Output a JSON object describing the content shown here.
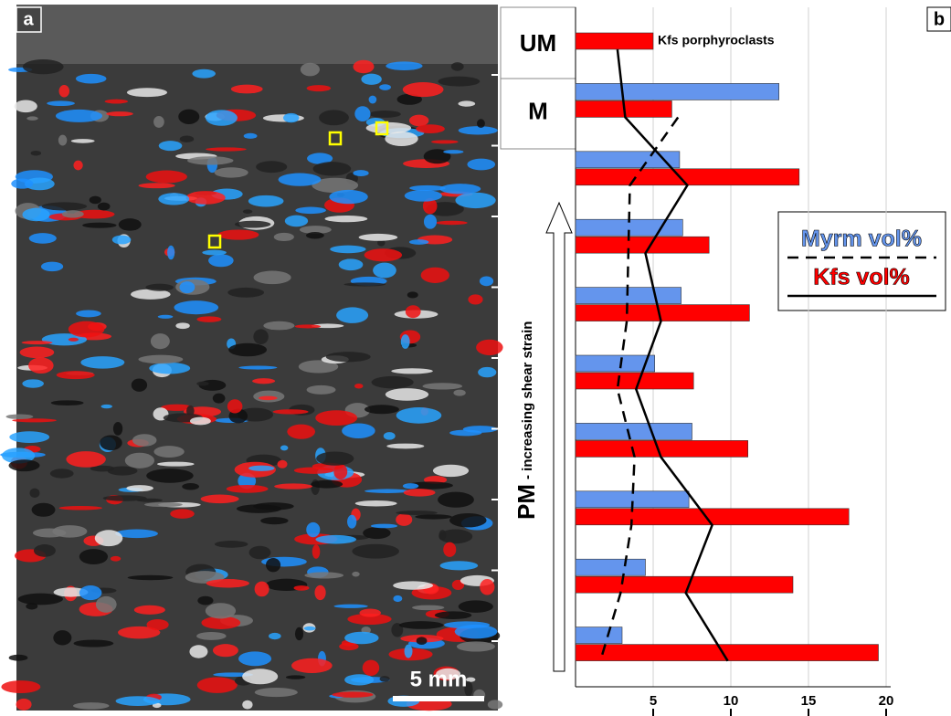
{
  "panel_a": {
    "label": "a",
    "scale_bar": "5 mm"
  },
  "chart_data": {
    "type": "bar",
    "orientation": "horizontal",
    "panel_label": "b",
    "categories": [
      "UM",
      "M",
      null,
      null,
      null,
      null,
      null,
      null,
      null,
      null
    ],
    "zone_label": "PM",
    "zone_sublabel": "- increasing shear strain",
    "annotation": "Kfs porphyroclasts",
    "series": [
      {
        "name": "Myrm vol%",
        "color": "#6495ed",
        "values": [
          null,
          13.1,
          6.7,
          6.9,
          6.8,
          5.1,
          7.5,
          7.3,
          4.5,
          3.0
        ],
        "trend": [
          null,
          6.6,
          3.5,
          3.4,
          3.3,
          2.7,
          3.8,
          3.6,
          2.9,
          1.6
        ],
        "trend_dash": true
      },
      {
        "name": "Kfs vol%",
        "color": "#ff0000",
        "values": [
          5.0,
          6.2,
          14.4,
          8.6,
          11.2,
          7.6,
          11.1,
          17.6,
          14.0,
          19.5
        ],
        "trend": [
          2.7,
          3.2,
          7.2,
          4.5,
          5.5,
          3.9,
          5.5,
          8.8,
          7.1,
          9.8
        ],
        "trend_dash": false
      }
    ],
    "xlim": [
      0,
      20
    ],
    "xticks": [
      5,
      10,
      15,
      20
    ],
    "grid": true
  }
}
